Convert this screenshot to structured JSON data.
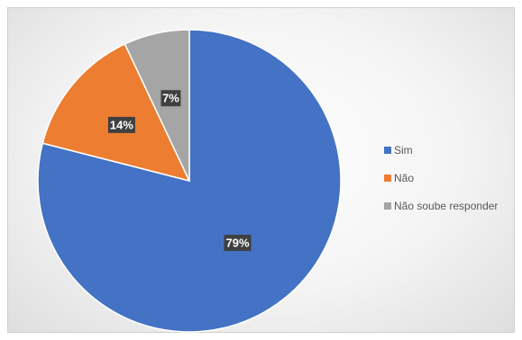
{
  "chart_data": {
    "type": "pie",
    "categories": [
      "Sim",
      "Não",
      "Não soube responder"
    ],
    "values": [
      79,
      14,
      7
    ],
    "data_labels": [
      "79%",
      "14%",
      "7%"
    ],
    "colors": [
      "#4472C4",
      "#ED7D31",
      "#A5A5A5"
    ],
    "title": "",
    "legend_position": "right"
  }
}
